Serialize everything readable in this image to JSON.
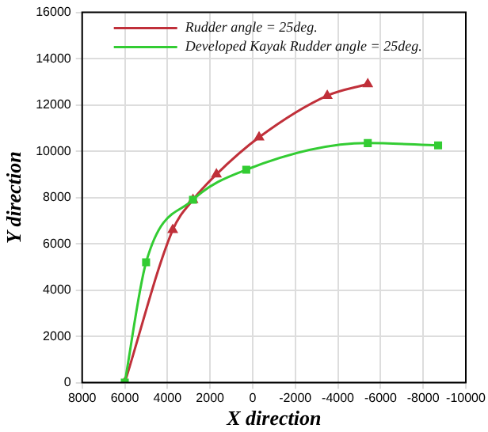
{
  "chart_data": {
    "type": "line",
    "xlabel": "X direction",
    "ylabel": "Y direction",
    "xlim": [
      8000,
      -10000
    ],
    "xticks": [
      8000,
      6000,
      4000,
      2000,
      0,
      -2000,
      -4000,
      -6000,
      -8000,
      -10000
    ],
    "ylim": [
      0,
      16000
    ],
    "yticks": [
      0,
      2000,
      4000,
      6000,
      8000,
      10000,
      12000,
      14000,
      16000
    ],
    "grid": true,
    "legend": "top left",
    "line_style": "solid",
    "series": [
      {
        "name": "Rudder angle = 25deg.",
        "color": "#c0303a",
        "marker": "triangle",
        "x": [
          6000,
          3750,
          2800,
          1700,
          -300,
          -3500,
          -5400
        ],
        "values": [
          0,
          6600,
          7900,
          9000,
          10600,
          12400,
          12900
        ]
      },
      {
        "name": "Developed Kayak Rudder angle = 25deg.",
        "color": "#33cc33",
        "marker": "square",
        "x": [
          6000,
          5000,
          2800,
          300,
          -5400,
          -8700
        ],
        "values": [
          0,
          5200,
          7900,
          9200,
          10350,
          10250
        ]
      }
    ]
  }
}
